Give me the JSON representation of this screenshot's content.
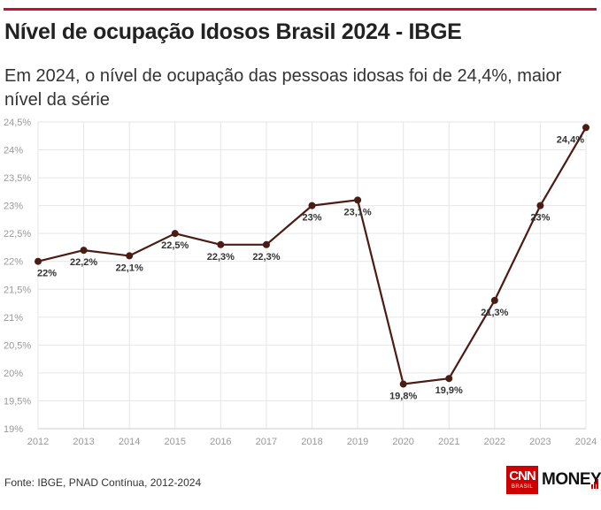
{
  "header": {
    "title": "Nível de ocupação Idosos Brasil 2024 - IBGE",
    "subtitle": "Em 2024, o nível de ocupação das pessoas idosas foi de 24,4%, maior nível da série"
  },
  "footer": {
    "source": "Fonte: IBGE, PNAD Contínua, 2012-2024"
  },
  "logo": {
    "brand": "CNN",
    "region": "BRASIL",
    "product": "MONEY",
    "brand_color": "#cc0000"
  },
  "colors": {
    "accent_rule": "#c8102e",
    "line": "#4a1c14",
    "grid": "#e6e6e6",
    "axis_text": "#999999",
    "label_text": "#333333"
  },
  "chart_data": {
    "type": "line",
    "title": "Nível de ocupação Idosos Brasil 2024 - IBGE",
    "xlabel": "",
    "ylabel": "",
    "grid": true,
    "ylim": [
      19,
      24.5
    ],
    "y_ticks": [
      19,
      19.5,
      20,
      20.5,
      21,
      21.5,
      22,
      22.5,
      23,
      23.5,
      24,
      24.5
    ],
    "y_tick_labels": [
      "19%",
      "19,5%",
      "20%",
      "20,5%",
      "21%",
      "21,5%",
      "22%",
      "22,5%",
      "23%",
      "23,5%",
      "24%",
      "24,5%"
    ],
    "categories": [
      "2012",
      "2013",
      "2014",
      "2015",
      "2016",
      "2017",
      "2018",
      "2019",
      "2020",
      "2021",
      "2022",
      "2023",
      "2024"
    ],
    "series": [
      {
        "name": "Nível de ocupação",
        "values": [
          22,
          22.2,
          22.1,
          22.5,
          22.3,
          22.3,
          23,
          23.1,
          19.8,
          19.9,
          21.3,
          23,
          24.4
        ],
        "data_labels": [
          "22%",
          "22,2%",
          "22,1%",
          "22,5%",
          "22,3%",
          "22,3%",
          "23%",
          "23,1%",
          "19,8%",
          "19,9%",
          "21,3%",
          "23%",
          "24,4%"
        ]
      }
    ]
  }
}
